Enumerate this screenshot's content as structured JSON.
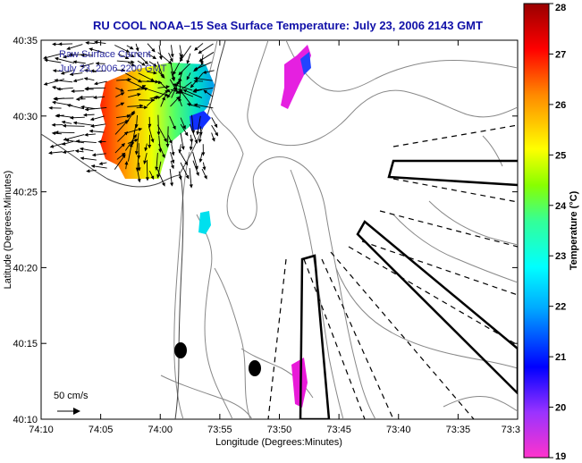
{
  "title": "RU COOL  NOAA–15  Sea Surface Temperature:  July 23, 2006 2143 GMT",
  "inset": {
    "line1": "Raw Surface Current",
    "line2": "July 23, 2006 2200 GMT"
  },
  "axes": {
    "ylabel": "Latitude (Degrees:Minutes)",
    "xlabel": "Longitude (Degrees:Minutes)",
    "yticks": [
      "40:35",
      "40:30",
      "40:25",
      "40:20",
      "40:15",
      "40:10"
    ],
    "xticks": [
      "74:10",
      "74:05",
      "74:00",
      "73:55",
      "73:50",
      "73:45",
      "73:40",
      "73:35",
      "73:3"
    ]
  },
  "scale": {
    "label": "50 cm/s"
  },
  "colorbar": {
    "label": "Temperature (°C)",
    "ticks": [
      "28",
      "27",
      "26",
      "25",
      "24",
      "23",
      "22",
      "21",
      "20",
      "19"
    ],
    "min": 19,
    "max": 28,
    "colors": [
      "#ff33cc",
      "#9933ff",
      "#0000ff",
      "#00aaff",
      "#00ffff",
      "#33ff99",
      "#88ff00",
      "#ffff00",
      "#ff8800",
      "#ff0000",
      "#990000"
    ]
  }
}
